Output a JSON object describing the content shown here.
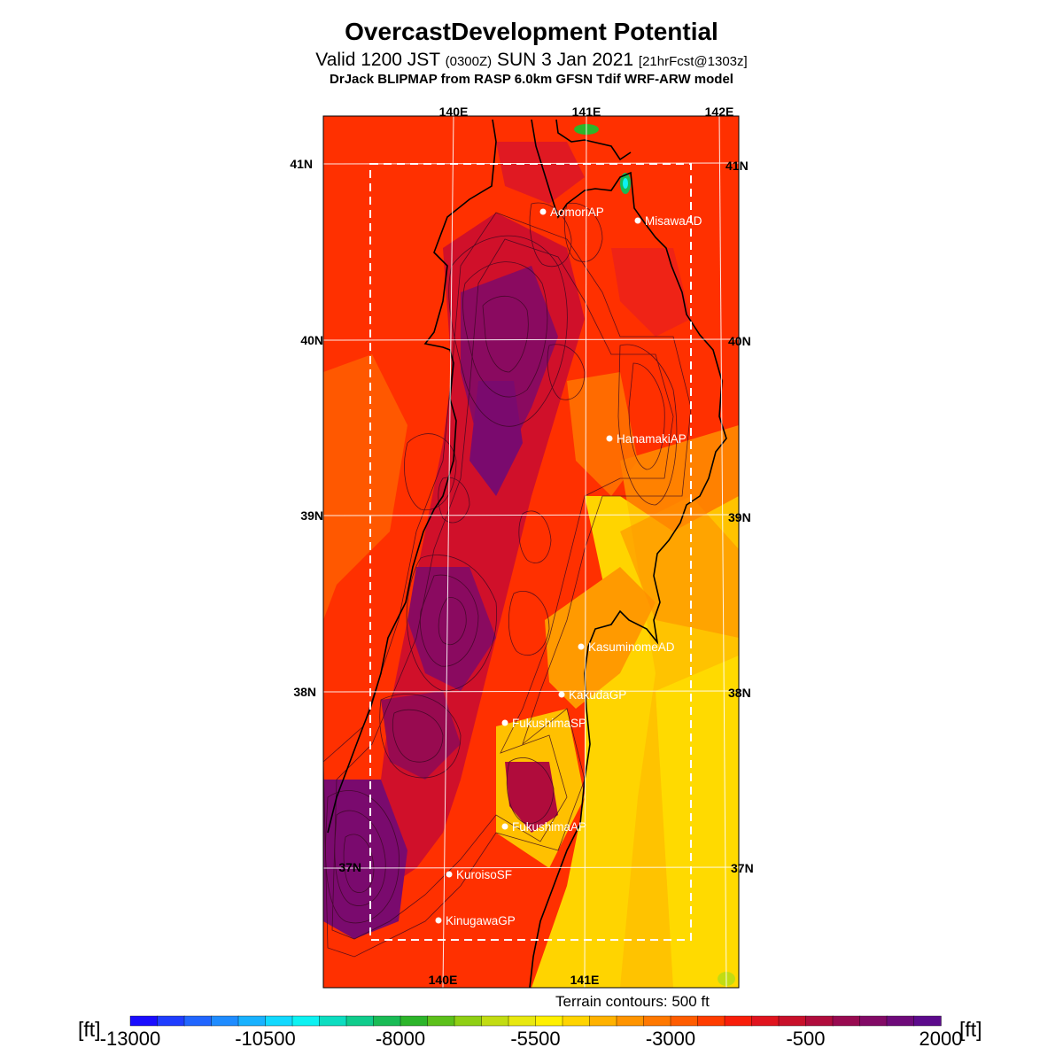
{
  "header": {
    "title": "OvercastDevelopment Potential",
    "valid_prefix": "Valid 1200 JST ",
    "valid_z": "(0300Z)",
    "valid_date": " SUN 3 Jan 2021 ",
    "forecast": "[21hrFcst@1303z]",
    "model": "DrJack BLIPMAP from RASP 6.0km GFSN Tdif WRF-ARW model"
  },
  "map": {
    "lon_labels": [
      "140E",
      "141E",
      "142E"
    ],
    "lat_labels": [
      "41N",
      "40N",
      "39N",
      "38N",
      "37N"
    ],
    "sites": [
      {
        "name": "AomoriAP"
      },
      {
        "name": "MisawaAD"
      },
      {
        "name": "HanamakiAP"
      },
      {
        "name": "KasuminomeAD"
      },
      {
        "name": "KakudaGP"
      },
      {
        "name": "FukushimaSP"
      },
      {
        "name": "FukushimaAP"
      },
      {
        "name": "KuroisoSF"
      },
      {
        "name": "KinugawaGP"
      }
    ],
    "terrain_note": "Terrain contours: 500 ft"
  },
  "colorbar": {
    "unit": "[ft]",
    "tick_labels": [
      "-13000",
      "-10500",
      "-8000",
      "-5500",
      "-3000",
      "-500",
      "2000"
    ],
    "colors": [
      "#1a0dff",
      "#1f3dff",
      "#2166ff",
      "#1f8cff",
      "#19b2ff",
      "#12d9ff",
      "#0df2f2",
      "#0dddc0",
      "#10cc8c",
      "#19bb55",
      "#2cb52a",
      "#5cc01a",
      "#8fcf14",
      "#c2dc12",
      "#e8e80f",
      "#fff000",
      "#ffd400",
      "#ffb200",
      "#ff9400",
      "#ff7800",
      "#ff5c00",
      "#ff3c00",
      "#f81e0a",
      "#e0141e",
      "#c8102a",
      "#b00c3c",
      "#980a50",
      "#820a66",
      "#6e0a7a",
      "#5c0a8c"
    ]
  }
}
